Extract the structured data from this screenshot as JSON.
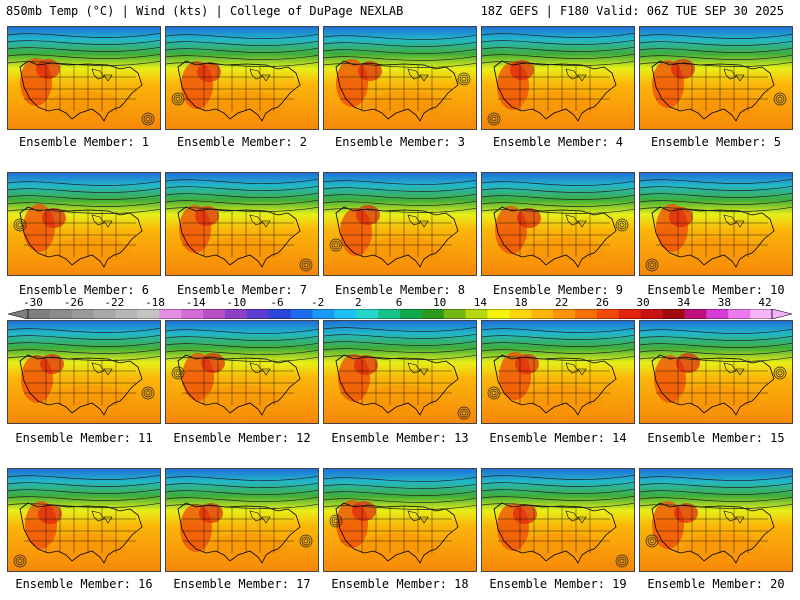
{
  "header": {
    "left": "850mb Temp (°C) | Wind (kts) | College of DuPage NEXLAB",
    "right": "18Z GEFS | F180 Valid: 06Z TUE SEP 30 2025"
  },
  "colorbar": {
    "labels": [
      "-30",
      "-26",
      "-22",
      "-18",
      "-14",
      "-10",
      "-6",
      "-2",
      "2",
      "6",
      "10",
      "14",
      "18",
      "22",
      "26",
      "30",
      "34",
      "38",
      "42"
    ],
    "colors": [
      "#7f7f7f",
      "#8c8c8c",
      "#9a9a9a",
      "#a8a8a8",
      "#b6b6b6",
      "#c4c4c4",
      "#e38ee3",
      "#d46cd4",
      "#b84fc6",
      "#8d3fc8",
      "#5b3dd0",
      "#2a47d8",
      "#1e6cec",
      "#1b97f5",
      "#1fc1f3",
      "#25d6c6",
      "#17c28a",
      "#11a94e",
      "#2e9a1d",
      "#74b715",
      "#b7d80f",
      "#f5f50c",
      "#fbd60a",
      "#fcb409",
      "#fa9308",
      "#f66e08",
      "#ef4a0a",
      "#e0240e",
      "#c61312",
      "#a10a10",
      "#c0107f",
      "#d63bd6",
      "#ec7aec",
      "#f6b3f6"
    ]
  },
  "members": [
    {
      "label": "Ensemble Member: 1"
    },
    {
      "label": "Ensemble Member: 2"
    },
    {
      "label": "Ensemble Member: 3"
    },
    {
      "label": "Ensemble Member: 4"
    },
    {
      "label": "Ensemble Member: 5"
    },
    {
      "label": "Ensemble Member: 6"
    },
    {
      "label": "Ensemble Member: 7"
    },
    {
      "label": "Ensemble Member: 8"
    },
    {
      "label": "Ensemble Member: 9"
    },
    {
      "label": "Ensemble Member: 10"
    },
    {
      "label": "Ensemble Member: 11"
    },
    {
      "label": "Ensemble Member: 12"
    },
    {
      "label": "Ensemble Member: 13"
    },
    {
      "label": "Ensemble Member: 14"
    },
    {
      "label": "Ensemble Member: 15"
    },
    {
      "label": "Ensemble Member: 16"
    },
    {
      "label": "Ensemble Member: 17"
    },
    {
      "label": "Ensemble Member: 18"
    },
    {
      "label": "Ensemble Member: 19"
    },
    {
      "label": "Ensemble Member: 20"
    }
  ]
}
